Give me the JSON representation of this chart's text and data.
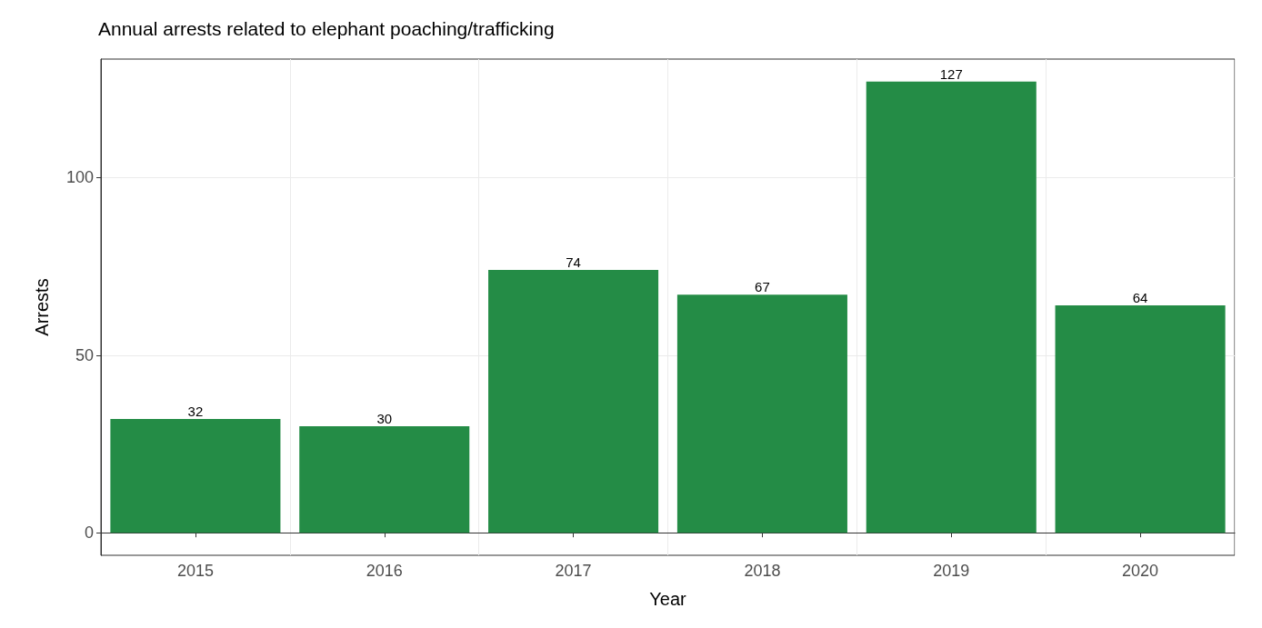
{
  "chart_data": {
    "type": "bar",
    "title": "Annual arrests related to elephant poaching/trafficking",
    "xlabel": "Year",
    "ylabel": "Arrests",
    "categories": [
      "2015",
      "2016",
      "2017",
      "2018",
      "2019",
      "2020"
    ],
    "values": [
      32,
      30,
      74,
      67,
      127,
      64
    ],
    "color": "#248c46",
    "data_labels": true,
    "ylim": [
      -6.35,
      133.35
    ],
    "yticks": [
      0,
      50,
      100
    ],
    "grid": true
  }
}
